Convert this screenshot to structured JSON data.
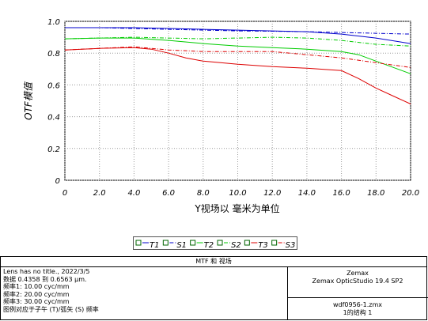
{
  "chart_data": {
    "type": "line",
    "title": "",
    "xlabel": "Y视场以 毫米为单位",
    "ylabel": "OTF模值",
    "xlim": [
      0,
      20
    ],
    "ylim": [
      0,
      1
    ],
    "x_ticks": [
      "0",
      "2.0",
      "4.0",
      "6.0",
      "8.0",
      "10.0",
      "12.0",
      "14.0",
      "16.0",
      "18.0",
      "20.0"
    ],
    "y_ticks": [
      "0",
      "0.2",
      "0.4",
      "0.6",
      "0.8",
      "1.0"
    ],
    "grid": true,
    "legend_position": "bottom-center",
    "series": [
      {
        "name": "T1",
        "color": "#0000cc",
        "dash": "solid",
        "x": [
          0,
          2,
          4,
          6,
          8,
          10,
          12,
          14,
          16,
          18,
          20
        ],
        "y": [
          0.96,
          0.96,
          0.96,
          0.955,
          0.95,
          0.945,
          0.94,
          0.935,
          0.92,
          0.895,
          0.86
        ]
      },
      {
        "name": "S1",
        "color": "#0000cc",
        "dash": "dashdot",
        "x": [
          0,
          2,
          4,
          6,
          8,
          10,
          12,
          14,
          16,
          18,
          20
        ],
        "y": [
          0.96,
          0.96,
          0.955,
          0.95,
          0.945,
          0.94,
          0.938,
          0.935,
          0.93,
          0.925,
          0.92
        ]
      },
      {
        "name": "T2",
        "color": "#00cc00",
        "dash": "solid",
        "x": [
          0,
          2,
          4,
          6,
          8,
          10,
          12,
          14,
          16,
          17,
          18,
          20
        ],
        "y": [
          0.89,
          0.895,
          0.895,
          0.88,
          0.86,
          0.845,
          0.835,
          0.825,
          0.81,
          0.79,
          0.75,
          0.67
        ]
      },
      {
        "name": "S2",
        "color": "#00cc00",
        "dash": "dashdot",
        "x": [
          0,
          2,
          4,
          6,
          8,
          10,
          12,
          14,
          16,
          18,
          20
        ],
        "y": [
          0.89,
          0.895,
          0.9,
          0.895,
          0.89,
          0.895,
          0.9,
          0.895,
          0.88,
          0.855,
          0.845
        ]
      },
      {
        "name": "T3",
        "color": "#dd0000",
        "dash": "solid",
        "x": [
          0,
          2,
          4,
          5,
          6,
          7,
          8,
          10,
          12,
          14,
          16,
          17,
          18,
          19,
          20
        ],
        "y": [
          0.82,
          0.83,
          0.835,
          0.825,
          0.8,
          0.77,
          0.75,
          0.73,
          0.715,
          0.705,
          0.69,
          0.64,
          0.58,
          0.53,
          0.48
        ]
      },
      {
        "name": "S3",
        "color": "#dd0000",
        "dash": "dashdot",
        "x": [
          0,
          2,
          4,
          6,
          8,
          10,
          12,
          14,
          16,
          18,
          20
        ],
        "y": [
          0.82,
          0.83,
          0.84,
          0.82,
          0.81,
          0.81,
          0.81,
          0.79,
          0.77,
          0.74,
          0.71
        ]
      }
    ]
  },
  "info": {
    "header": "MTF 和 视场",
    "left_lines": [
      "Lens has no title., 2022/3/5",
      "数据 0.4358 到 0.6563 µm.",
      "频率1:  10.00 cyc/mm",
      "频率2:  20.00 cyc/mm",
      "频率3:  30.00 cyc/mm",
      "图例对应于子午 (T)/弧矢 (S) 频率"
    ],
    "right_top_lines": [
      "Zemax",
      "Zemax OpticStudio 19.4 SP2"
    ],
    "right_bottom_lines": [
      "wdf0956-1.zmx",
      "1的结构 1"
    ]
  }
}
